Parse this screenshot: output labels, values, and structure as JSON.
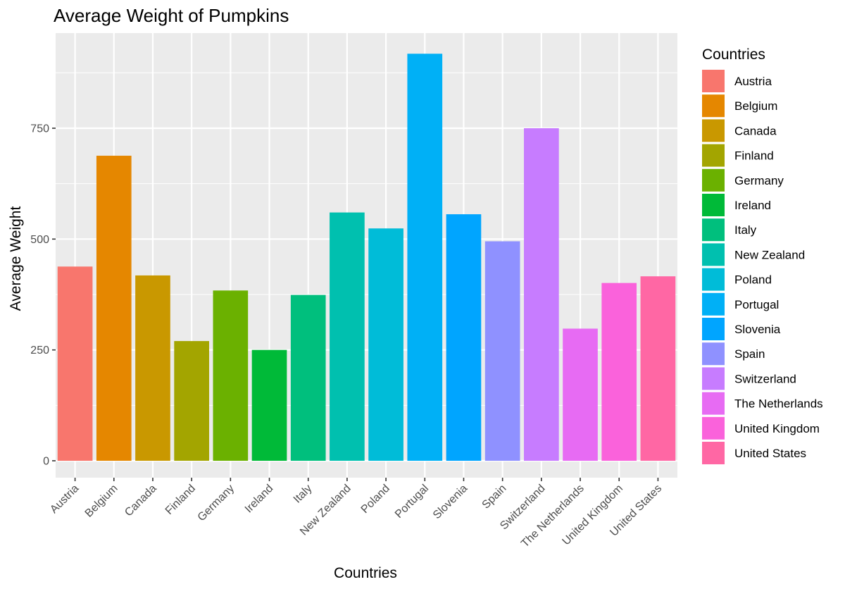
{
  "chart_data": {
    "type": "bar",
    "title": "Average Weight of Pumpkins",
    "xlabel": "Countries",
    "ylabel": "Average Weight",
    "categories": [
      "Austria",
      "Belgium",
      "Canada",
      "Finland",
      "Germany",
      "Ireland",
      "Italy",
      "New Zealand",
      "Poland",
      "Portugal",
      "Slovenia",
      "Spain",
      "Switzerland",
      "The Netherlands",
      "United Kingdom",
      "United States"
    ],
    "values": [
      438,
      688,
      418,
      270,
      384,
      250,
      374,
      560,
      524,
      918,
      556,
      495,
      750,
      298,
      401,
      416
    ],
    "colors": [
      "#F8766D",
      "#E58700",
      "#C99800",
      "#A3A500",
      "#6BB100",
      "#00BA38",
      "#00BF7D",
      "#00C0AF",
      "#00BCD8",
      "#00B0F6",
      "#00A5FF",
      "#8F91FF",
      "#C77CFF",
      "#E76BF3",
      "#FA62DB",
      "#FF67A4"
    ],
    "ylim": [
      0,
      940
    ],
    "yticks": [
      0,
      250,
      500,
      750
    ],
    "ytick_labels": [
      "0",
      "250",
      "500",
      "750"
    ],
    "grid": true,
    "legend": {
      "title": "Countries",
      "position": "right",
      "entries": [
        "Austria",
        "Belgium",
        "Canada",
        "Finland",
        "Germany",
        "Ireland",
        "Italy",
        "New Zealand",
        "Poland",
        "Portugal",
        "Slovenia",
        "Spain",
        "Switzerland",
        "The Netherlands",
        "United Kingdom",
        "United States"
      ]
    },
    "panel_background": "#EBEBEB",
    "grid_color": "#FFFFFF"
  }
}
